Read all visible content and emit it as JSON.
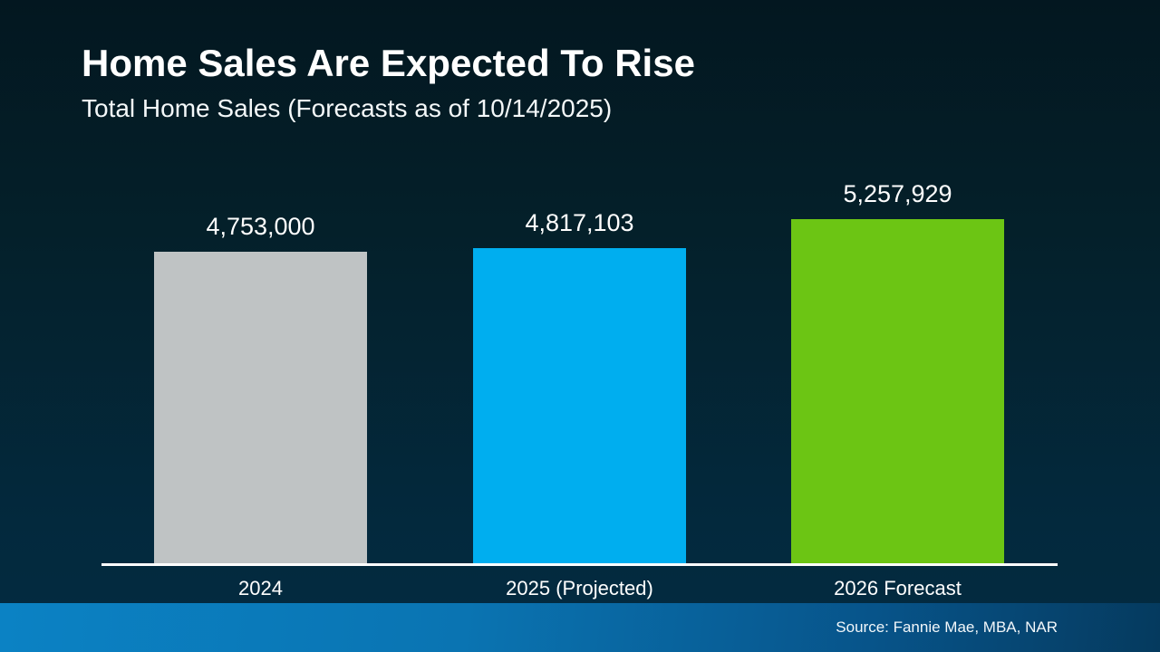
{
  "slide": {
    "title": "Home Sales Are Expected To Rise",
    "subtitle": "Total Home Sales (Forecasts as of 10/14/2025)",
    "source": "Source: Fannie Mae, MBA, NAR"
  },
  "chart_data": {
    "type": "bar",
    "title": "Home Sales Are Expected To Rise",
    "subtitle": "Total Home Sales (Forecasts as of 10/14/2025)",
    "categories": [
      "2024",
      "2025 (Projected)",
      "2026 Forecast"
    ],
    "values": [
      4753000,
      4817103,
      5257929
    ],
    "value_labels": [
      "4,753,000",
      "4,817,103",
      "5,257,929"
    ],
    "bar_colors": [
      "#bfc3c4",
      "#00aeef",
      "#6cc514"
    ],
    "xlabel": "",
    "ylabel": "",
    "ylim": [
      0,
      5257929
    ],
    "grid": false,
    "legend": "none",
    "baseline_color": "#ffffff",
    "background_top": "#031720",
    "background_bottom": "#032b41",
    "footer_accent": "#0b82c4"
  }
}
